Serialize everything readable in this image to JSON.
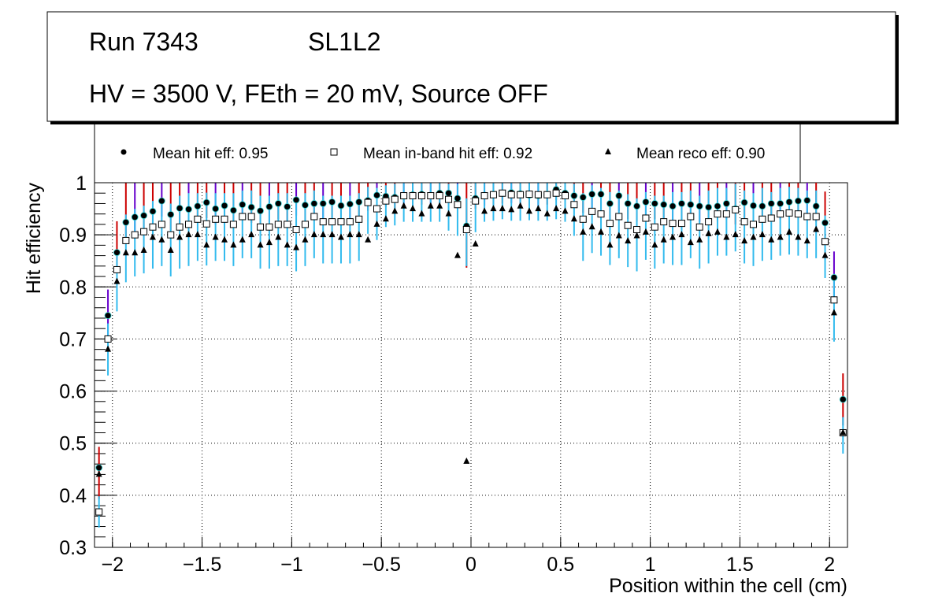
{
  "header": {
    "run": "Run 7343",
    "layer": "SL1L2",
    "conditions": "HV = 3500 V, FEth = 20 mV, Source OFF"
  },
  "legend": {
    "hit": "Mean hit  eff: 0.95",
    "inband": "Mean in-band hit eff: 0.92",
    "reco": "Mean reco eff: 0.90"
  },
  "colors": {
    "hit_err": "#cc0000",
    "hit_err_alt": "#6600cc",
    "inband_err": "#33bbee",
    "marker": "#000000",
    "grid": "#000000"
  },
  "chart_data": {
    "type": "scatter",
    "title": "",
    "xlabel": "Position within the cell (cm)",
    "ylabel": "Hit efficiency",
    "xlim": [
      -2.1,
      2.1
    ],
    "ylim": [
      0.3,
      1.0
    ],
    "grid": true,
    "x_ticks": [
      -2,
      -1.5,
      -1,
      -0.5,
      0,
      0.5,
      1,
      1.5,
      2
    ],
    "x_tick_labels": [
      "−2",
      "−1.5",
      "−1",
      "−0.5",
      "0",
      "0.5",
      "1",
      "1.5",
      "2"
    ],
    "y_ticks": [
      0.3,
      0.4,
      0.5,
      0.6,
      0.7,
      0.8,
      0.9,
      1.0
    ],
    "y_tick_labels": [
      "0.3",
      "0.4",
      "0.5",
      "0.6",
      "0.7",
      "0.8",
      "0.9",
      "1"
    ],
    "x": [
      -2.075,
      -2.025,
      -1.975,
      -1.925,
      -1.875,
      -1.825,
      -1.775,
      -1.725,
      -1.675,
      -1.625,
      -1.575,
      -1.525,
      -1.475,
      -1.425,
      -1.375,
      -1.325,
      -1.275,
      -1.225,
      -1.175,
      -1.125,
      -1.075,
      -1.025,
      -0.975,
      -0.925,
      -0.875,
      -0.825,
      -0.775,
      -0.725,
      -0.675,
      -0.625,
      -0.575,
      -0.525,
      -0.475,
      -0.425,
      -0.375,
      -0.325,
      -0.275,
      -0.225,
      -0.175,
      -0.125,
      -0.075,
      -0.025,
      0.025,
      0.075,
      0.125,
      0.175,
      0.225,
      0.275,
      0.325,
      0.375,
      0.425,
      0.475,
      0.525,
      0.575,
      0.625,
      0.675,
      0.725,
      0.775,
      0.825,
      0.875,
      0.925,
      0.975,
      1.025,
      1.075,
      1.125,
      1.175,
      1.225,
      1.275,
      1.325,
      1.375,
      1.425,
      1.475,
      1.525,
      1.575,
      1.625,
      1.675,
      1.725,
      1.775,
      1.825,
      1.875,
      1.925,
      1.975,
      2.025,
      2.075
    ],
    "series": [
      {
        "name": "Mean hit  eff: 0.95",
        "marker": "circle",
        "values": [
          0.453,
          0.745,
          0.866,
          0.924,
          0.934,
          0.937,
          0.945,
          0.965,
          0.939,
          0.951,
          0.949,
          0.955,
          0.962,
          0.95,
          0.956,
          0.947,
          0.958,
          0.953,
          0.946,
          0.954,
          0.96,
          0.954,
          0.967,
          0.957,
          0.96,
          0.96,
          0.963,
          0.956,
          0.959,
          0.963,
          0.966,
          0.976,
          0.974,
          0.972,
          0.974,
          0.977,
          0.978,
          0.976,
          0.98,
          0.98,
          0.97,
          0.917,
          0.97,
          0.976,
          0.978,
          0.98,
          0.981,
          0.979,
          0.976,
          0.975,
          0.978,
          0.987,
          0.98,
          0.975,
          0.972,
          0.978,
          0.978,
          0.96,
          0.975,
          0.96,
          0.955,
          0.963,
          0.96,
          0.958,
          0.955,
          0.96,
          0.958,
          0.955,
          0.953,
          0.955,
          0.96,
          0.95,
          0.962,
          0.956,
          0.955,
          0.96,
          0.96,
          0.963,
          0.965,
          0.966,
          0.955,
          0.923,
          0.818,
          0.584
        ],
        "err_low": [
          0.06,
          0.04,
          0.03,
          0.03,
          0.03,
          0.03,
          0.03,
          0.03,
          0.03,
          0.03,
          0.03,
          0.03,
          0.03,
          0.03,
          0.03,
          0.03,
          0.03,
          0.03,
          0.03,
          0.03,
          0.03,
          0.03,
          0.03,
          0.03,
          0.03,
          0.03,
          0.03,
          0.03,
          0.03,
          0.03,
          0.02,
          0.02,
          0.02,
          0.02,
          0.02,
          0.02,
          0.02,
          0.02,
          0.02,
          0.02,
          0.02,
          0.08,
          0.02,
          0.02,
          0.02,
          0.02,
          0.02,
          0.02,
          0.02,
          0.02,
          0.02,
          0.02,
          0.02,
          0.02,
          0.03,
          0.03,
          0.03,
          0.03,
          0.03,
          0.03,
          0.03,
          0.03,
          0.03,
          0.03,
          0.03,
          0.03,
          0.03,
          0.03,
          0.03,
          0.03,
          0.03,
          0.03,
          0.03,
          0.03,
          0.03,
          0.03,
          0.03,
          0.03,
          0.03,
          0.03,
          0.03,
          0.03,
          0.04,
          0.05
        ],
        "err_high": [
          0.04,
          0.05,
          0.06,
          0.076,
          0.066,
          0.063,
          0.055,
          0.035,
          0.061,
          0.049,
          0.051,
          0.045,
          0.038,
          0.05,
          0.044,
          0.053,
          0.042,
          0.047,
          0.054,
          0.046,
          0.04,
          0.046,
          0.033,
          0.043,
          0.04,
          0.04,
          0.037,
          0.044,
          0.041,
          0.037,
          0.034,
          0.024,
          0.026,
          0.028,
          0.026,
          0.023,
          0.022,
          0.024,
          0.02,
          0.02,
          0.03,
          0.083,
          0.03,
          0.024,
          0.022,
          0.02,
          0.019,
          0.021,
          0.024,
          0.025,
          0.022,
          0.013,
          0.02,
          0.025,
          0.028,
          0.022,
          0.022,
          0.04,
          0.025,
          0.04,
          0.045,
          0.037,
          0.04,
          0.042,
          0.045,
          0.04,
          0.042,
          0.045,
          0.047,
          0.045,
          0.04,
          0.05,
          0.038,
          0.044,
          0.045,
          0.04,
          0.04,
          0.037,
          0.035,
          0.034,
          0.045,
          0.06,
          0.05,
          0.05
        ]
      },
      {
        "name": "Mean in-band hit eff: 0.92",
        "marker": "open-square",
        "values": [
          0.368,
          0.7,
          0.833,
          0.889,
          0.9,
          0.906,
          0.915,
          0.92,
          0.9,
          0.915,
          0.92,
          0.93,
          0.921,
          0.93,
          0.93,
          0.92,
          0.935,
          0.935,
          0.915,
          0.915,
          0.92,
          0.92,
          0.91,
          0.92,
          0.935,
          0.925,
          0.925,
          0.925,
          0.925,
          0.93,
          0.962,
          0.95,
          0.965,
          0.968,
          0.975,
          0.975,
          0.975,
          0.975,
          0.975,
          0.968,
          0.958,
          0.91,
          0.965,
          0.975,
          0.977,
          0.98,
          0.977,
          0.977,
          0.978,
          0.977,
          0.977,
          0.98,
          0.975,
          0.958,
          0.93,
          0.945,
          0.94,
          0.922,
          0.935,
          0.918,
          0.91,
          0.932,
          0.915,
          0.925,
          0.922,
          0.922,
          0.935,
          0.915,
          0.925,
          0.94,
          0.94,
          0.948,
          0.925,
          0.92,
          0.93,
          0.932,
          0.94,
          0.942,
          0.94,
          0.935,
          0.935,
          0.887,
          0.775,
          0.52
        ],
        "err_low": [
          0.03,
          0.07,
          0.08,
          0.08,
          0.08,
          0.08,
          0.08,
          0.08,
          0.08,
          0.08,
          0.08,
          0.08,
          0.08,
          0.08,
          0.08,
          0.08,
          0.08,
          0.08,
          0.08,
          0.08,
          0.08,
          0.08,
          0.08,
          0.08,
          0.08,
          0.08,
          0.08,
          0.08,
          0.08,
          0.08,
          0.06,
          0.06,
          0.05,
          0.05,
          0.05,
          0.05,
          0.05,
          0.05,
          0.05,
          0.06,
          0.06,
          0.07,
          0.06,
          0.05,
          0.05,
          0.05,
          0.05,
          0.05,
          0.05,
          0.05,
          0.05,
          0.05,
          0.05,
          0.06,
          0.08,
          0.08,
          0.08,
          0.08,
          0.08,
          0.08,
          0.08,
          0.08,
          0.08,
          0.08,
          0.08,
          0.08,
          0.08,
          0.08,
          0.08,
          0.08,
          0.08,
          0.08,
          0.08,
          0.08,
          0.08,
          0.08,
          0.08,
          0.08,
          0.08,
          0.08,
          0.08,
          0.07,
          0.08,
          0.04
        ],
        "err_high": [
          0.03,
          0.03,
          0.03,
          0.05,
          0.05,
          0.05,
          0.05,
          0.05,
          0.06,
          0.06,
          0.06,
          0.05,
          0.06,
          0.05,
          0.05,
          0.06,
          0.05,
          0.05,
          0.06,
          0.06,
          0.06,
          0.06,
          0.06,
          0.06,
          0.05,
          0.05,
          0.05,
          0.05,
          0.05,
          0.05,
          0.03,
          0.04,
          0.03,
          0.03,
          0.025,
          0.025,
          0.025,
          0.025,
          0.025,
          0.03,
          0.04,
          0.06,
          0.035,
          0.025,
          0.023,
          0.02,
          0.023,
          0.023,
          0.022,
          0.023,
          0.023,
          0.02,
          0.025,
          0.04,
          0.05,
          0.05,
          0.05,
          0.06,
          0.05,
          0.06,
          0.06,
          0.05,
          0.06,
          0.05,
          0.06,
          0.06,
          0.05,
          0.06,
          0.06,
          0.05,
          0.05,
          0.05,
          0.06,
          0.06,
          0.06,
          0.05,
          0.05,
          0.05,
          0.05,
          0.05,
          0.05,
          0.05,
          0.05,
          0.03
        ]
      },
      {
        "name": "Mean reco eff: 0.90",
        "marker": "triangle",
        "values": [
          0.44,
          0.68,
          0.81,
          0.865,
          0.865,
          0.87,
          0.895,
          0.89,
          0.87,
          0.895,
          0.9,
          0.9,
          0.88,
          0.895,
          0.89,
          0.88,
          0.89,
          0.9,
          0.88,
          0.885,
          0.895,
          0.88,
          0.875,
          0.89,
          0.9,
          0.9,
          0.9,
          0.895,
          0.9,
          0.9,
          0.89,
          0.92,
          0.93,
          0.945,
          0.955,
          0.95,
          0.94,
          0.955,
          0.955,
          0.94,
          0.86,
          0.465,
          0.882,
          0.945,
          0.95,
          0.95,
          0.948,
          0.955,
          0.945,
          0.95,
          0.94,
          0.95,
          0.945,
          0.93,
          0.905,
          0.915,
          0.905,
          0.88,
          0.898,
          0.888,
          0.898,
          0.905,
          0.88,
          0.89,
          0.895,
          0.9,
          0.885,
          0.89,
          0.902,
          0.905,
          0.895,
          0.9,
          0.888,
          0.895,
          0.9,
          0.89,
          0.895,
          0.905,
          0.895,
          0.888,
          0.91,
          0.86,
          0.75,
          0.52
        ]
      }
    ]
  },
  "axes": {
    "xlabel": "Position within the cell (cm)",
    "ylabel": "Hit efficiency"
  }
}
